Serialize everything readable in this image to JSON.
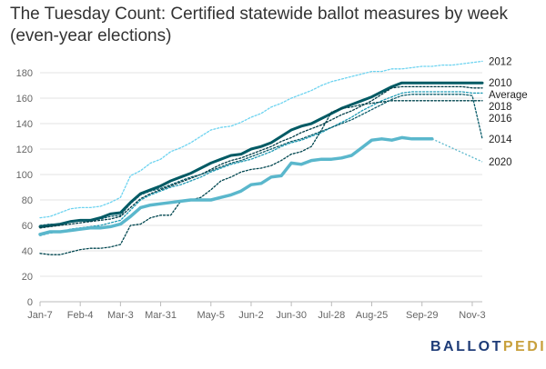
{
  "chart_data": {
    "type": "line",
    "title": "The Tuesday Count: Certified statewide ballot measures by week (even-year elections)",
    "xlabel": "",
    "ylabel": "",
    "ylim": [
      0,
      190
    ],
    "y_ticks": [
      0,
      20,
      40,
      60,
      80,
      100,
      120,
      140,
      160,
      180
    ],
    "x_ticks": [
      {
        "label": "Jan-7",
        "week": 0
      },
      {
        "label": "Feb-4",
        "week": 4
      },
      {
        "label": "Mar-3",
        "week": 8
      },
      {
        "label": "Mar-31",
        "week": 12
      },
      {
        "label": "May-5",
        "week": 17
      },
      {
        "label": "Jun-2",
        "week": 21
      },
      {
        "label": "Jun-30",
        "week": 25
      },
      {
        "label": "Jul-28",
        "week": 29
      },
      {
        "label": "Aug-25",
        "week": 33
      },
      {
        "label": "Sep-29",
        "week": 38
      },
      {
        "label": "Nov-3",
        "week": 43
      }
    ],
    "x_range": [
      0,
      44
    ],
    "grid": true,
    "series": [
      {
        "name": "2012",
        "color": "#6cd3f0",
        "style": "dotted",
        "width": 1.3,
        "x": [
          0,
          1,
          2,
          3,
          4,
          5,
          6,
          7,
          8,
          9,
          10,
          11,
          12,
          13,
          14,
          15,
          16,
          17,
          18,
          19,
          20,
          21,
          22,
          23,
          24,
          25,
          26,
          27,
          28,
          29,
          30,
          31,
          32,
          33,
          34,
          35,
          36,
          37,
          38,
          39,
          40,
          41,
          42,
          43,
          44
        ],
        "values": [
          66,
          67,
          70,
          73,
          74,
          74,
          75,
          78,
          82,
          99,
          103,
          109,
          112,
          118,
          121,
          125,
          130,
          135,
          137,
          138,
          141,
          145,
          148,
          153,
          156,
          160,
          163,
          166,
          170,
          173,
          175,
          177,
          179,
          181,
          181,
          183,
          183,
          184,
          185,
          185,
          186,
          186,
          187,
          188,
          189
        ]
      },
      {
        "name": "2010",
        "color": "#005a64",
        "style": "solid",
        "width": 3,
        "x": [
          0,
          1,
          2,
          3,
          4,
          5,
          6,
          7,
          8,
          9,
          10,
          11,
          12,
          13,
          14,
          15,
          16,
          17,
          18,
          19,
          20,
          21,
          22,
          23,
          24,
          25,
          26,
          27,
          28,
          29,
          30,
          31,
          32,
          33,
          34,
          35,
          36,
          37,
          38,
          39,
          40,
          41,
          42,
          43,
          44
        ],
        "values": [
          59,
          60,
          61,
          63,
          64,
          64,
          66,
          69,
          70,
          78,
          85,
          88,
          91,
          95,
          98,
          101,
          105,
          109,
          112,
          115,
          116,
          120,
          122,
          125,
          130,
          135,
          138,
          140,
          144,
          148,
          152,
          155,
          158,
          161,
          165,
          169,
          172,
          172,
          172,
          172,
          172,
          172,
          172,
          172,
          172
        ]
      },
      {
        "name": "Average",
        "color": "#003c46",
        "style": "dotted",
        "width": 1.3,
        "x": [
          0,
          1,
          2,
          3,
          4,
          5,
          6,
          7,
          8,
          9,
          10,
          11,
          12,
          13,
          14,
          15,
          16,
          17,
          18,
          19,
          20,
          21,
          22,
          23,
          24,
          25,
          26,
          27,
          28,
          29,
          30,
          31,
          32,
          33,
          34,
          35,
          36,
          37,
          38,
          39,
          40,
          41,
          42,
          43,
          44
        ],
        "values": [
          58,
          59,
          60,
          61,
          62,
          63,
          64,
          65,
          67,
          74,
          81,
          85,
          88,
          91,
          94,
          97,
          100,
          104,
          108,
          111,
          113,
          116,
          119,
          122,
          126,
          129,
          133,
          136,
          139,
          143,
          147,
          150,
          154,
          158,
          163,
          168,
          169,
          169,
          169,
          169,
          169,
          169,
          169,
          168,
          168
        ]
      },
      {
        "name": "2018",
        "color": "#1e9ab4",
        "style": "dotted",
        "width": 1.3,
        "x": [
          0,
          1,
          2,
          3,
          4,
          5,
          6,
          7,
          8,
          9,
          10,
          11,
          12,
          13,
          14,
          15,
          16,
          17,
          18,
          19,
          20,
          21,
          22,
          23,
          24,
          25,
          26,
          27,
          28,
          29,
          30,
          31,
          32,
          33,
          34,
          35,
          36,
          37,
          38,
          39,
          40,
          41,
          42,
          43,
          44
        ],
        "values": [
          52,
          54,
          55,
          57,
          58,
          59,
          60,
          62,
          64,
          72,
          80,
          84,
          87,
          90,
          92,
          95,
          98,
          102,
          105,
          108,
          110,
          112,
          115,
          118,
          122,
          125,
          127,
          130,
          133,
          137,
          141,
          145,
          150,
          154,
          158,
          161,
          164,
          165,
          165,
          165,
          165,
          165,
          165,
          164,
          164
        ]
      },
      {
        "name": "2016",
        "color": "#00464f",
        "style": "dotted",
        "width": 1.3,
        "x": [
          0,
          1,
          2,
          3,
          4,
          5,
          6,
          7,
          8,
          9,
          10,
          11,
          12,
          13,
          14,
          15,
          16,
          17,
          18,
          19,
          20,
          21,
          22,
          23,
          24,
          25,
          26,
          27,
          28,
          29,
          30,
          31,
          32,
          33,
          34,
          35,
          36,
          37,
          38,
          39,
          40,
          41,
          42,
          43,
          44
        ],
        "values": [
          38,
          37,
          37,
          39,
          41,
          42,
          42,
          43,
          45,
          60,
          61,
          66,
          68,
          68,
          79,
          80,
          82,
          88,
          95,
          98,
          102,
          104,
          105,
          107,
          111,
          116,
          118,
          122,
          135,
          149,
          152,
          153,
          155,
          156,
          157,
          158,
          158,
          158,
          158,
          158,
          158,
          158,
          158,
          158,
          158
        ]
      },
      {
        "name": "2014",
        "color": "#0a5c6a",
        "style": "dotted",
        "width": 1.3,
        "x": [
          0,
          1,
          2,
          3,
          4,
          5,
          6,
          7,
          8,
          9,
          10,
          11,
          12,
          13,
          14,
          15,
          16,
          17,
          18,
          19,
          20,
          21,
          22,
          23,
          24,
          25,
          26,
          27,
          28,
          29,
          30,
          31,
          32,
          33,
          34,
          35,
          36,
          37,
          38,
          39,
          40,
          41,
          42,
          43,
          44
        ],
        "values": [
          60,
          61,
          61,
          63,
          64,
          64,
          65,
          67,
          68,
          77,
          84,
          87,
          89,
          92,
          95,
          98,
          100,
          103,
          106,
          109,
          111,
          114,
          117,
          120,
          123,
          126,
          128,
          131,
          134,
          137,
          140,
          143,
          147,
          151,
          155,
          159,
          162,
          163,
          163,
          163,
          163,
          163,
          163,
          162,
          128
        ]
      },
      {
        "name": "2020",
        "color": "#5ab7cc",
        "style": "solid",
        "width": 3.5,
        "x": [
          0,
          1,
          2,
          3,
          4,
          5,
          6,
          7,
          8,
          9,
          10,
          11,
          12,
          13,
          14,
          15,
          16,
          17,
          18,
          19,
          20,
          21,
          22,
          23,
          24,
          25,
          26,
          27,
          28,
          29,
          30,
          31,
          32,
          33,
          34,
          35,
          36,
          37,
          38,
          39
        ],
        "values": [
          53,
          55,
          55,
          56,
          57,
          58,
          58,
          59,
          61,
          67,
          74,
          76,
          77,
          78,
          79,
          80,
          80,
          80,
          82,
          84,
          87,
          92,
          93,
          98,
          99,
          109,
          108,
          111,
          112,
          112,
          113,
          115,
          121,
          127,
          128,
          127,
          129,
          128,
          128,
          128
        ],
        "ext_x": [
          39,
          44
        ],
        "ext_values": [
          128,
          110
        ]
      }
    ]
  },
  "brand": {
    "part1": "BALLOT",
    "part2": "PEDIA",
    "color1": "#1e3c78",
    "color2": "#c8a03c"
  }
}
